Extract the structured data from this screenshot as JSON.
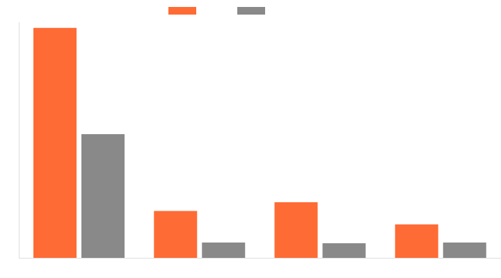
{
  "chart_data": {
    "type": "bar",
    "categories": [
      "",
      "",
      "",
      ""
    ],
    "series": [
      {
        "color": "#ff6b35",
        "values": [
          97.6,
          19.9,
          23.6,
          14.2
        ]
      },
      {
        "color": "#898989",
        "values": [
          52.5,
          6.5,
          6.2,
          6.5
        ]
      }
    ],
    "title": "",
    "xlabel": "",
    "ylabel": "",
    "ylim": [
      0,
      100
    ],
    "grid": false,
    "legend": "top-center",
    "axis_color": "#dddddd"
  }
}
